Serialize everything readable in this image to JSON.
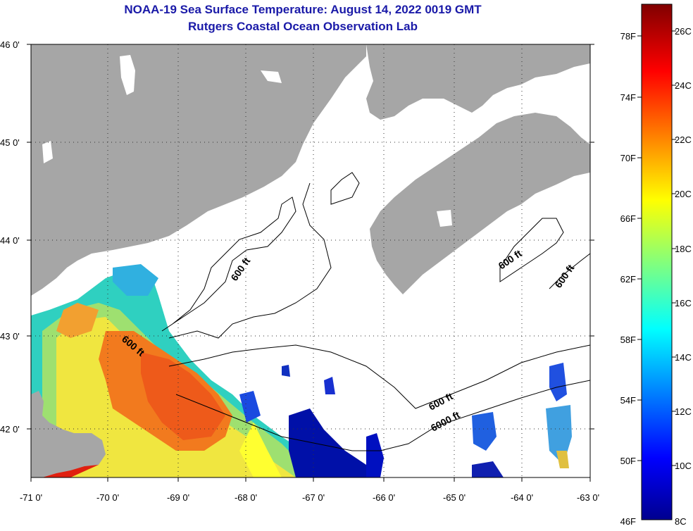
{
  "title": {
    "line1": "NOAA-19 Sea Surface Temperature:  August 14, 2022 0019 GMT",
    "line2": "Rutgers Coastal Ocean Observation Lab"
  },
  "axes": {
    "lat_labels": [
      "46 0'",
      "45 0'",
      "44 0'",
      "43 0'",
      "42 0'"
    ],
    "lon_labels": [
      "-71 0'",
      "-70 0'",
      "-69 0'",
      "-68 0'",
      "-67 0'",
      "-66 0'",
      "-65 0'",
      "-64 0'",
      "-63 0'"
    ]
  },
  "contour_labels": [
    "600 ft",
    "600 ft",
    "600 ft",
    "600 ft",
    "600 ft",
    "6000 ft"
  ],
  "colorbar": {
    "fahrenheit": [
      "78F",
      "74F",
      "70F",
      "66F",
      "62F",
      "58F",
      "54F",
      "50F",
      "46F"
    ],
    "celsius": [
      "26C",
      "24C",
      "22C",
      "20C",
      "18C",
      "16C",
      "14C",
      "12C",
      "10C",
      "8C"
    ]
  },
  "colors": {
    "land": "#a6a6a6",
    "ocean": "#ffffff",
    "title": "#1a1aa8"
  }
}
